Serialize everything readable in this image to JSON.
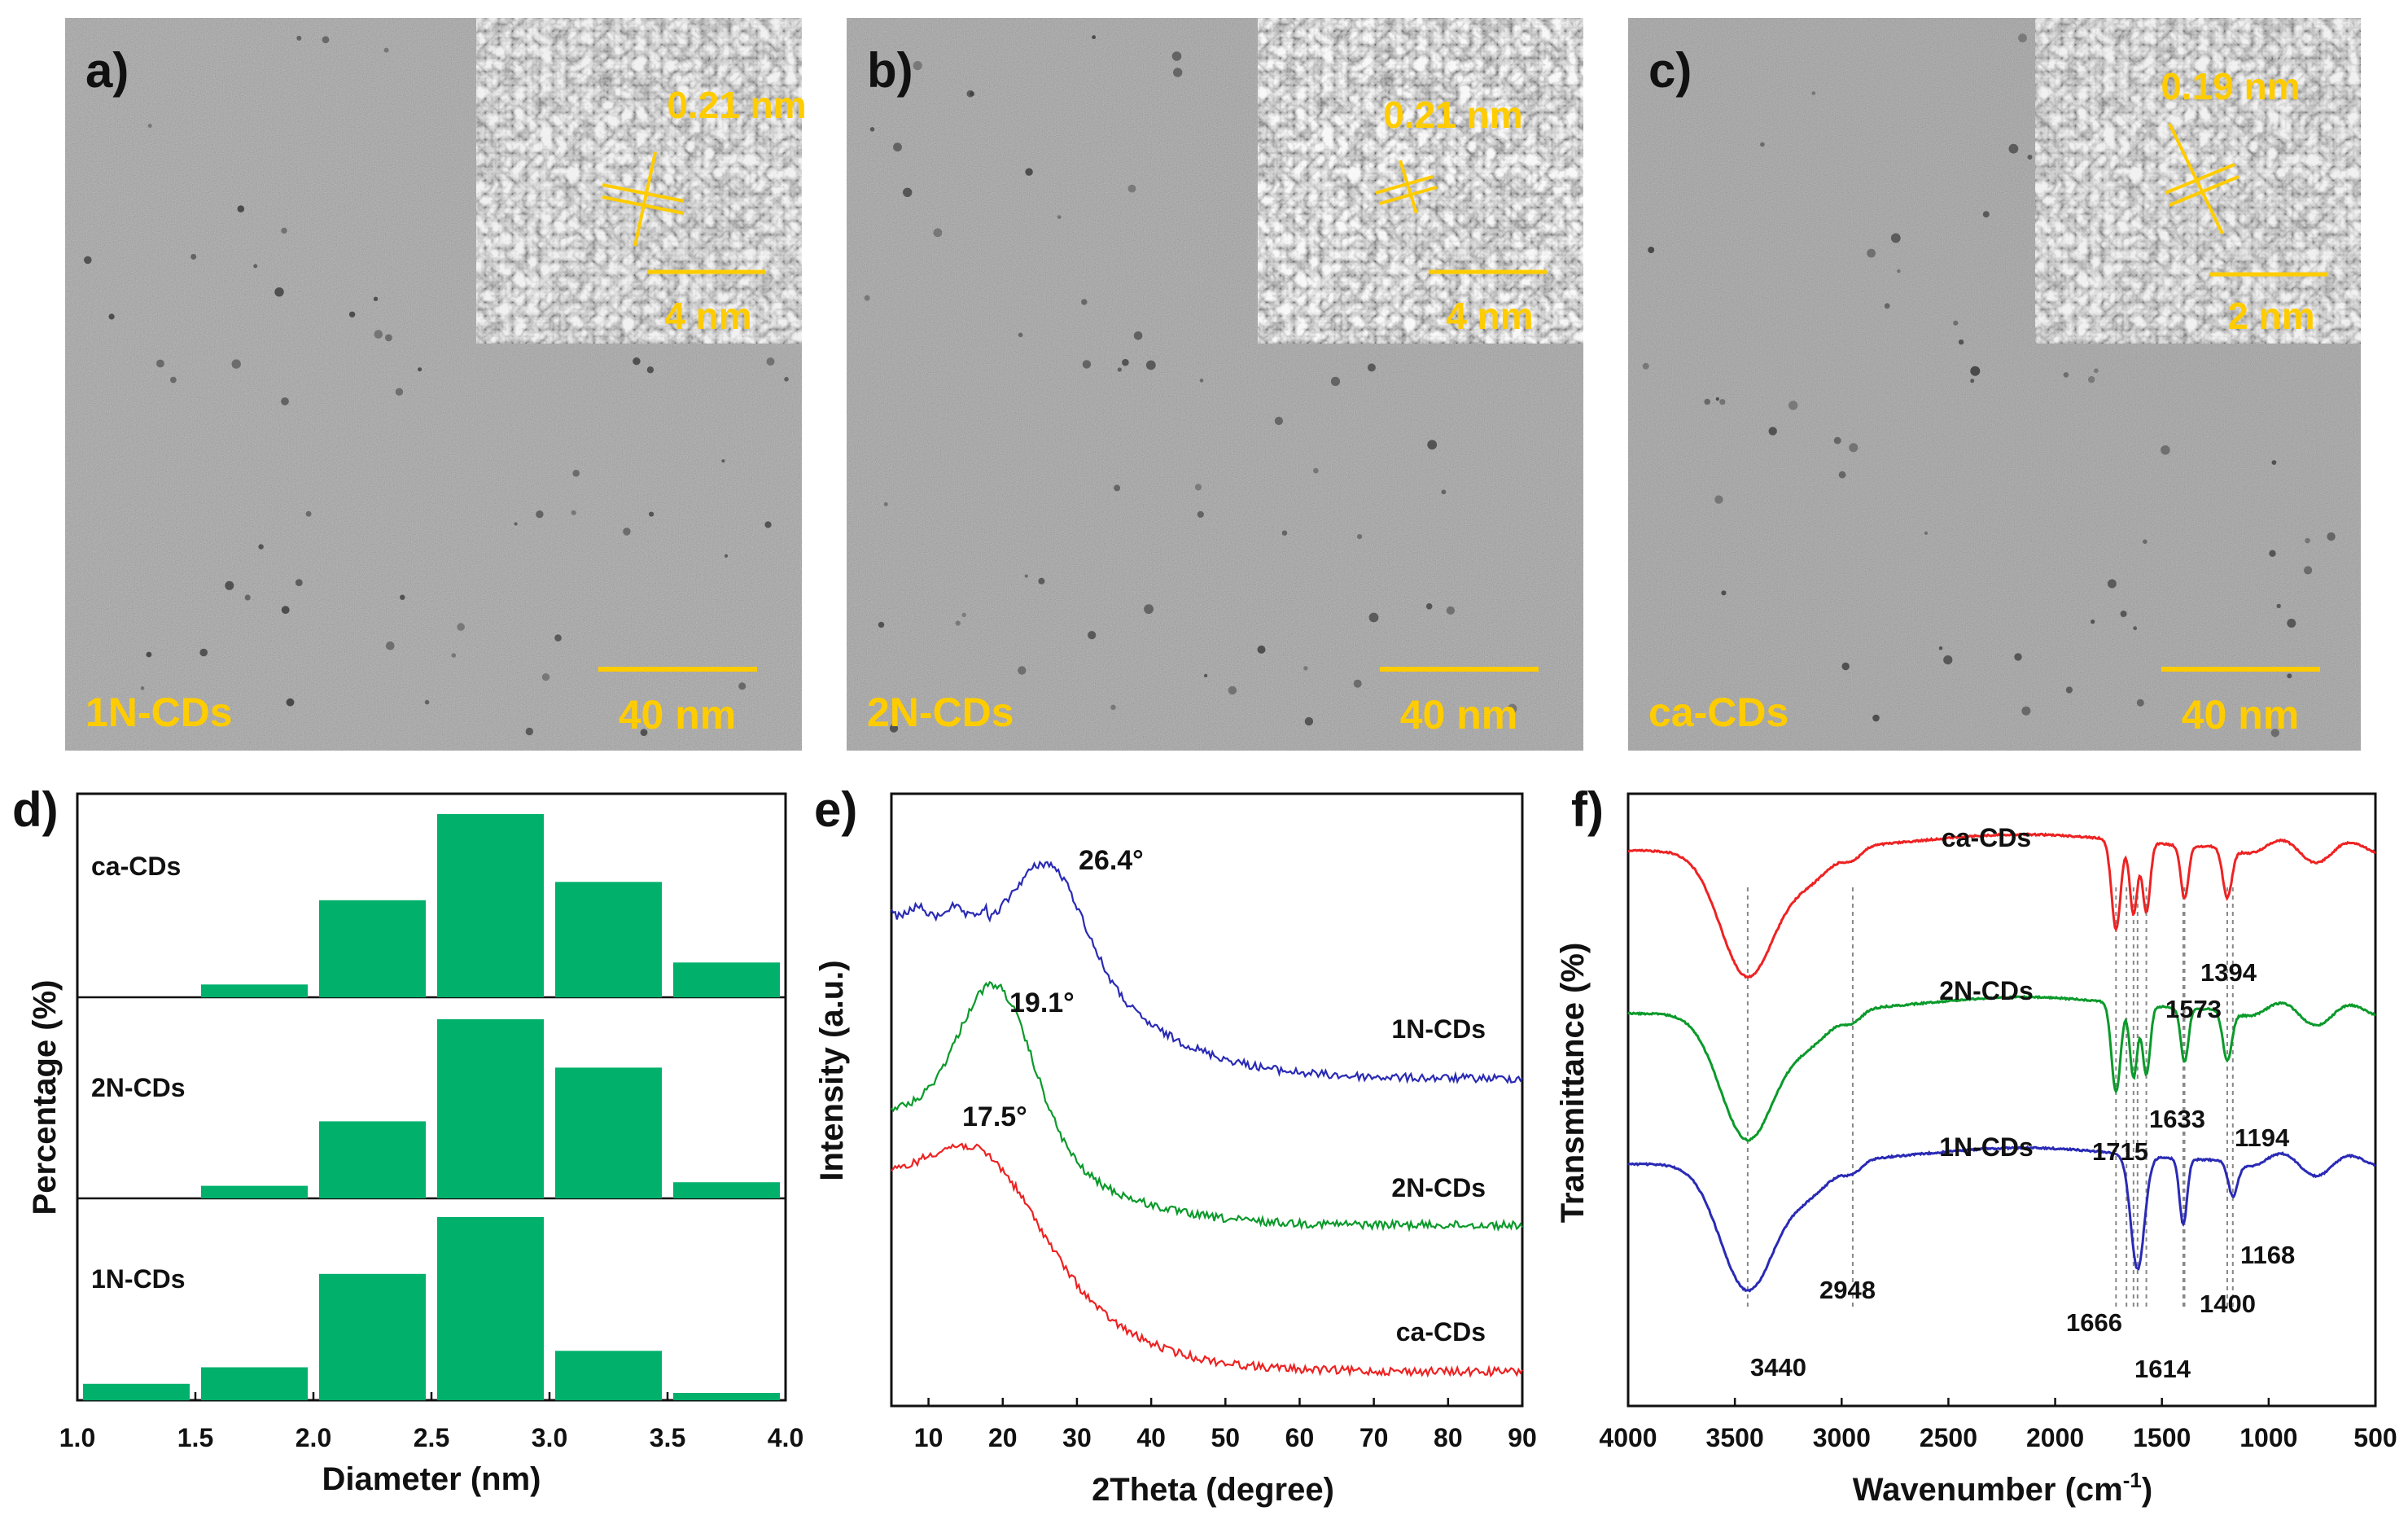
{
  "colors": {
    "tem_yellow": "#ffcc00",
    "tem_background": "#7a7a7a",
    "bar_green": "#00b06b",
    "series_blue": "#2a2ab5",
    "series_green": "#0a9a2a",
    "series_red": "#ee2222"
  },
  "tem_panels": [
    {
      "panel": "a)",
      "sample": "1N-CDs",
      "scale": "40 nm",
      "inset_scale": "4 nm",
      "lattice": "0.21 nm"
    },
    {
      "panel": "b)",
      "sample": "2N-CDs",
      "scale": "40 nm",
      "inset_scale": "4 nm",
      "lattice": "0.21 nm"
    },
    {
      "panel": "c)",
      "sample": "ca-CDs",
      "scale": "40 nm",
      "inset_scale": "2 nm",
      "lattice": "0.19 nm"
    }
  ],
  "chart_data": [
    {
      "panel": "d)",
      "type": "bar",
      "xlabel": "Diameter (nm)",
      "ylabel": "Percentage (%)",
      "xlim": [
        1.0,
        4.0
      ],
      "xticks": [
        "1.0",
        "1.5",
        "2.0",
        "2.5",
        "3.0",
        "3.5",
        "4.0"
      ],
      "bin_edges": [
        1.0,
        1.5,
        2.0,
        2.5,
        3.0,
        3.5,
        4.0
      ],
      "series": [
        {
          "name": "ca-CDs",
          "values": [
            0,
            7,
            53,
            100,
            63,
            19
          ]
        },
        {
          "name": "2N-CDs",
          "values": [
            0,
            7,
            43,
            100,
            73,
            9
          ]
        },
        {
          "name": "1N-CDs",
          "values": [
            9,
            18,
            69,
            100,
            27,
            4
          ]
        }
      ]
    },
    {
      "panel": "e)",
      "type": "line",
      "xlabel": "2Theta (degree)",
      "ylabel": "Intensity (a.u.)",
      "xlim": [
        5,
        90
      ],
      "xticks": [
        "10",
        "20",
        "30",
        "40",
        "50",
        "60",
        "70",
        "80",
        "90"
      ],
      "series": [
        {
          "name": "1N-CDs",
          "peak": 26.4,
          "peak_label": "26.4°",
          "color": "#2a2ab5"
        },
        {
          "name": "2N-CDs",
          "peak": 19.1,
          "peak_label": "19.1°",
          "color": "#0a9a2a"
        },
        {
          "name": "ca-CDs",
          "peak": 17.5,
          "peak_label": "17.5°",
          "color": "#ee2222"
        }
      ]
    },
    {
      "panel": "f)",
      "type": "line",
      "xlabel": "Wavenumber (cm",
      "xlabel_sup": "-1",
      "xlabel_end": ")",
      "ylabel": "Transmittance (%)",
      "xlim": [
        4000,
        500
      ],
      "xticks": [
        "4000",
        "3500",
        "3000",
        "2500",
        "2000",
        "1500",
        "1000",
        "500"
      ],
      "series": [
        {
          "name": "ca-CDs",
          "color": "#ee2222"
        },
        {
          "name": "2N-CDs",
          "color": "#0a9a2a"
        },
        {
          "name": "1N-CDs",
          "color": "#2a2ab5"
        }
      ],
      "peak_labels": [
        "3440",
        "2948",
        "1715",
        "1666",
        "1633",
        "1614",
        "1573",
        "1400",
        "1394",
        "1194",
        "1168"
      ],
      "guide_wavenumbers": [
        3440,
        2948,
        1715,
        1666,
        1633,
        1614,
        1573,
        1400,
        1394,
        1194,
        1168
      ]
    }
  ]
}
